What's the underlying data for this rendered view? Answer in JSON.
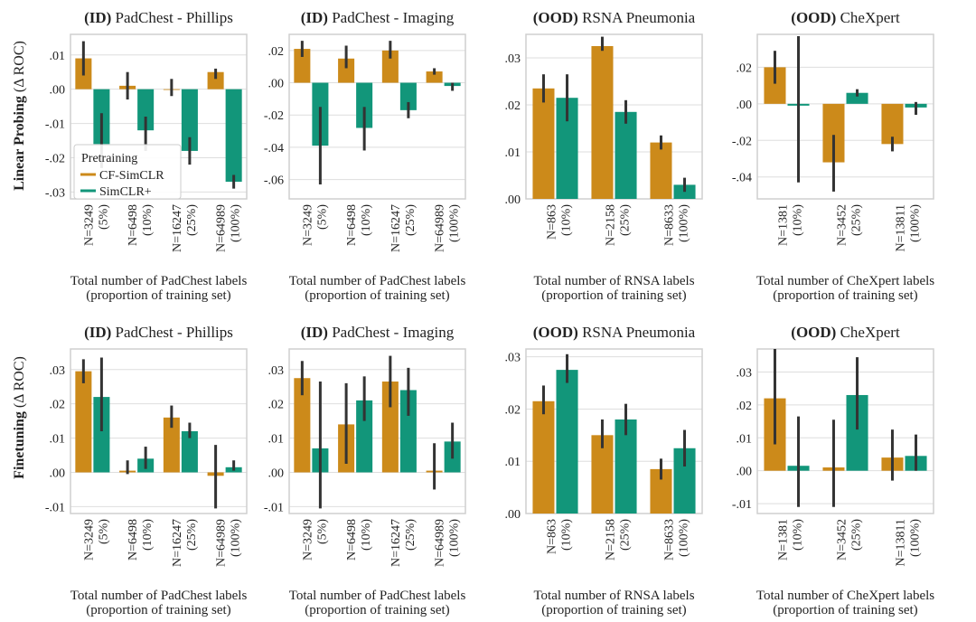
{
  "colors": {
    "cf": "#CC8A1A",
    "sim": "#12967A",
    "frame": "#cfcfcf",
    "grid": "#dedede",
    "err": "#333333"
  },
  "row_labels": [
    {
      "bold": "Linear Probing",
      "rest": " (Δ ROC)"
    },
    {
      "bold": "Finetuning",
      "rest": " (Δ ROC)"
    }
  ],
  "legend": {
    "title": "Pretraining",
    "entries": [
      "CF-SimCLR",
      "SimCLR+"
    ]
  },
  "chart_data": [
    {
      "type": "bar",
      "row": 0,
      "col": 0,
      "title_tag": "(ID)",
      "title": "PadChest - Phillips",
      "xlabel": [
        "Total number of PadChest labels",
        "(proportion of training set)"
      ],
      "categories": [
        [
          "N=3249",
          "(5%)"
        ],
        [
          "N=6498",
          "(10%)"
        ],
        [
          "N=16247",
          "(25%)"
        ],
        [
          "N=64989",
          "(100%)"
        ]
      ],
      "ylim": [
        -0.032,
        0.016
      ],
      "yticks": [
        0.01,
        0.0,
        -0.01,
        -0.02,
        -0.03
      ],
      "yticklabels": [
        ".01",
        ".00",
        "-.01",
        "-.02",
        "-.03"
      ],
      "series": [
        {
          "name": "CF-SimCLR",
          "values": [
            0.009,
            0.001,
            0.0,
            0.005
          ],
          "err": [
            [
              0.004,
              0.014
            ],
            [
              -0.003,
              0.005
            ],
            [
              -0.002,
              0.003
            ],
            [
              0.003,
              0.006
            ]
          ]
        },
        {
          "name": "SimCLR+",
          "values": [
            -0.016,
            -0.012,
            -0.018,
            -0.027
          ],
          "err": [
            [
              -0.023,
              -0.007
            ],
            [
              -0.018,
              -0.008
            ],
            [
              -0.022,
              -0.014
            ],
            [
              -0.029,
              -0.025
            ]
          ]
        }
      ]
    },
    {
      "type": "bar",
      "row": 0,
      "col": 1,
      "title_tag": "(ID)",
      "title": "PadChest - Imaging",
      "xlabel": [
        "Total number of PadChest labels",
        "(proportion of training set)"
      ],
      "categories": [
        [
          "N=3249",
          "(5%)"
        ],
        [
          "N=6498",
          "(10%)"
        ],
        [
          "N=16247",
          "(25%)"
        ],
        [
          "N=64989",
          "(100%)"
        ]
      ],
      "ylim": [
        -0.072,
        0.03
      ],
      "yticks": [
        0.02,
        0.0,
        -0.02,
        -0.04,
        -0.06
      ],
      "yticklabels": [
        ".02",
        ".00",
        "-.02",
        "-.04",
        "-.06"
      ],
      "series": [
        {
          "name": "CF-SimCLR",
          "values": [
            0.021,
            0.015,
            0.02,
            0.007
          ],
          "err": [
            [
              0.016,
              0.026
            ],
            [
              0.009,
              0.023
            ],
            [
              0.015,
              0.026
            ],
            [
              0.005,
              0.009
            ]
          ]
        },
        {
          "name": "SimCLR+",
          "values": [
            -0.039,
            -0.028,
            -0.017,
            -0.002
          ],
          "err": [
            [
              -0.063,
              -0.015
            ],
            [
              -0.042,
              -0.015
            ],
            [
              -0.022,
              -0.012
            ],
            [
              -0.005,
              0.0
            ]
          ]
        }
      ]
    },
    {
      "type": "bar",
      "row": 0,
      "col": 2,
      "title_tag": "(OOD)",
      "title": "RSNA Pneumonia",
      "xlabel": [
        "Total number of RNSA labels",
        "(proportion of training set)"
      ],
      "categories": [
        [
          "N=863",
          "(10%)"
        ],
        [
          "N=2158",
          "(25%)"
        ],
        [
          "N=8633",
          "(100%)"
        ]
      ],
      "ylim": [
        0,
        0.035
      ],
      "yticks": [
        0.03,
        0.02,
        0.01,
        0.0
      ],
      "yticklabels": [
        ".03",
        ".02",
        ".01",
        ".00"
      ],
      "series": [
        {
          "name": "CF-SimCLR",
          "values": [
            0.0235,
            0.0325,
            0.012
          ],
          "err": [
            [
              0.0205,
              0.0265
            ],
            [
              0.0315,
              0.0345
            ],
            [
              0.0105,
              0.0135
            ]
          ]
        },
        {
          "name": "SimCLR+",
          "values": [
            0.0215,
            0.0185,
            0.003
          ],
          "err": [
            [
              0.0165,
              0.0265
            ],
            [
              0.016,
              0.021
            ],
            [
              0.0015,
              0.0045
            ]
          ]
        }
      ]
    },
    {
      "type": "bar",
      "row": 0,
      "col": 3,
      "title_tag": "(OOD)",
      "title": "CheXpert",
      "xlabel": [
        "Total number of CheXpert labels",
        "(proportion of training set)"
      ],
      "categories": [
        [
          "N=1381",
          "(10%)"
        ],
        [
          "N=3452",
          "(25%)"
        ],
        [
          "N=13811",
          "(100%)"
        ]
      ],
      "ylim": [
        -0.052,
        0.038
      ],
      "yticks": [
        0.02,
        0.0,
        -0.02,
        -0.04
      ],
      "yticklabels": [
        ".02",
        ".00",
        "-.02",
        "-.04"
      ],
      "series": [
        {
          "name": "CF-SimCLR",
          "values": [
            0.02,
            -0.032,
            -0.022
          ],
          "err": [
            [
              0.011,
              0.029
            ],
            [
              -0.048,
              -0.017
            ],
            [
              -0.026,
              -0.018
            ]
          ]
        },
        {
          "name": "SimCLR+",
          "values": [
            -0.001,
            0.006,
            -0.002
          ],
          "err": [
            [
              -0.043,
              0.037
            ],
            [
              0.004,
              0.008
            ],
            [
              -0.006,
              0.001
            ]
          ]
        }
      ]
    },
    {
      "type": "bar",
      "row": 1,
      "col": 0,
      "title_tag": "(ID)",
      "title": "PadChest - Phillips",
      "xlabel": [
        "Total number of PadChest labels",
        "(proportion of training set)"
      ],
      "categories": [
        [
          "N=3249",
          "(5%)"
        ],
        [
          "N=6498",
          "(10%)"
        ],
        [
          "N=16247",
          "(25%)"
        ],
        [
          "N=64989",
          "(100%)"
        ]
      ],
      "ylim": [
        -0.012,
        0.036
      ],
      "yticks": [
        0.03,
        0.02,
        0.01,
        0.0,
        -0.01
      ],
      "yticklabels": [
        ".03",
        ".02",
        ".01",
        ".00",
        "-.01"
      ],
      "series": [
        {
          "name": "CF-SimCLR",
          "values": [
            0.0295,
            0.0005,
            0.016,
            -0.001
          ],
          "err": [
            [
              0.026,
              0.033
            ],
            [
              -0.0005,
              0.0035
            ],
            [
              0.013,
              0.0195
            ],
            [
              -0.0105,
              0.008
            ]
          ]
        },
        {
          "name": "SimCLR+",
          "values": [
            0.022,
            0.004,
            0.012,
            0.0015
          ],
          "err": [
            [
              0.012,
              0.0335
            ],
            [
              0.001,
              0.0075
            ],
            [
              0.01,
              0.0145
            ],
            [
              0.0005,
              0.0035
            ]
          ]
        }
      ]
    },
    {
      "type": "bar",
      "row": 1,
      "col": 1,
      "title_tag": "(ID)",
      "title": "PadChest - Imaging",
      "xlabel": [
        "Total number of PadChest labels",
        "(proportion of training set)"
      ],
      "categories": [
        [
          "N=3249",
          "(5%)"
        ],
        [
          "N=6498",
          "(10%)"
        ],
        [
          "N=16247",
          "(25%)"
        ],
        [
          "N=64989",
          "(100%)"
        ]
      ],
      "ylim": [
        -0.012,
        0.036
      ],
      "yticks": [
        0.03,
        0.02,
        0.01,
        0.0,
        -0.01
      ],
      "yticklabels": [
        ".03",
        ".02",
        ".01",
        ".00",
        "-.01"
      ],
      "series": [
        {
          "name": "CF-SimCLR",
          "values": [
            0.0275,
            0.014,
            0.0265,
            0.0005
          ],
          "err": [
            [
              0.0225,
              0.0325
            ],
            [
              0.0025,
              0.026
            ],
            [
              0.019,
              0.034
            ],
            [
              -0.005,
              0.0085
            ]
          ]
        },
        {
          "name": "SimCLR+",
          "values": [
            0.007,
            0.021,
            0.024,
            0.009
          ],
          "err": [
            [
              -0.0105,
              0.0265
            ],
            [
              0.015,
              0.028
            ],
            [
              0.0165,
              0.0305
            ],
            [
              0.004,
              0.0145
            ]
          ]
        }
      ]
    },
    {
      "type": "bar",
      "row": 1,
      "col": 2,
      "title_tag": "(OOD)",
      "title": "RSNA Pneumonia",
      "xlabel": [
        "Total number of RNSA labels",
        "(proportion of training set)"
      ],
      "categories": [
        [
          "N=863",
          "(10%)"
        ],
        [
          "N=2158",
          "(25%)"
        ],
        [
          "N=8633",
          "(100%)"
        ]
      ],
      "ylim": [
        0,
        0.0315
      ],
      "yticks": [
        0.03,
        0.02,
        0.01,
        0.0
      ],
      "yticklabels": [
        ".03",
        ".02",
        ".01",
        ".00"
      ],
      "series": [
        {
          "name": "CF-SimCLR",
          "values": [
            0.0215,
            0.015,
            0.0085
          ],
          "err": [
            [
              0.019,
              0.0245
            ],
            [
              0.0125,
              0.018
            ],
            [
              0.0065,
              0.0105
            ]
          ]
        },
        {
          "name": "SimCLR+",
          "values": [
            0.0275,
            0.018,
            0.0125
          ],
          "err": [
            [
              0.025,
              0.0305
            ],
            [
              0.015,
              0.021
            ],
            [
              0.009,
              0.016
            ]
          ]
        }
      ]
    },
    {
      "type": "bar",
      "row": 1,
      "col": 3,
      "title_tag": "(OOD)",
      "title": "CheXpert",
      "xlabel": [
        "Total number of CheXpert labels",
        "(proportion of training set)"
      ],
      "categories": [
        [
          "N=1381",
          "(10%)"
        ],
        [
          "N=3452",
          "(25%)"
        ],
        [
          "N=13811",
          "(100%)"
        ]
      ],
      "ylim": [
        -0.013,
        0.037
      ],
      "yticks": [
        0.03,
        0.02,
        0.01,
        0.0,
        -0.01
      ],
      "yticklabels": [
        ".03",
        ".02",
        ".01",
        ".00",
        "-.01"
      ],
      "series": [
        {
          "name": "CF-SimCLR",
          "values": [
            0.022,
            0.001,
            0.004
          ],
          "err": [
            [
              0.008,
              0.037
            ],
            [
              -0.011,
              0.0155
            ],
            [
              -0.003,
              0.0125
            ]
          ]
        },
        {
          "name": "SimCLR+",
          "values": [
            0.0015,
            0.023,
            0.0045
          ],
          "err": [
            [
              -0.011,
              0.0165
            ],
            [
              0.0125,
              0.0345
            ],
            [
              0.0,
              0.011
            ]
          ]
        }
      ]
    }
  ]
}
